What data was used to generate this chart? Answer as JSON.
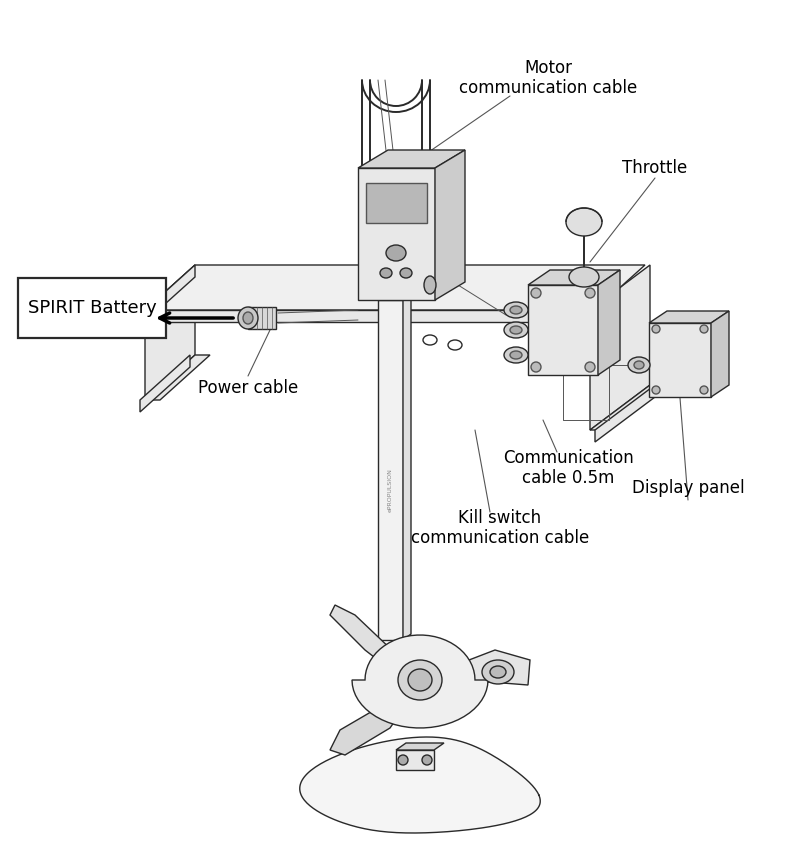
{
  "bg_color": "#ffffff",
  "line_color": "#2a2a2a",
  "line_color_light": "#555555",
  "fill_light": "#f5f5f5",
  "fill_mid": "#e8e8e8",
  "fill_dark": "#d5d5d5",
  "lw_main": 1.0,
  "lw_thin": 0.7,
  "lw_thick": 1.4,
  "labels": {
    "motor_comm_cable": "Motor\ncommunication cable",
    "throttle": "Throttle",
    "spirit_battery": "SPIRIT Battery",
    "power_cable": "Power cable",
    "comm_cable": "Communication\ncable 0.5m",
    "kill_switch": "Kill switch\ncommunication cable",
    "display_panel": "Display panel"
  },
  "figsize": [
    8.0,
    8.66
  ],
  "dpi": 100
}
